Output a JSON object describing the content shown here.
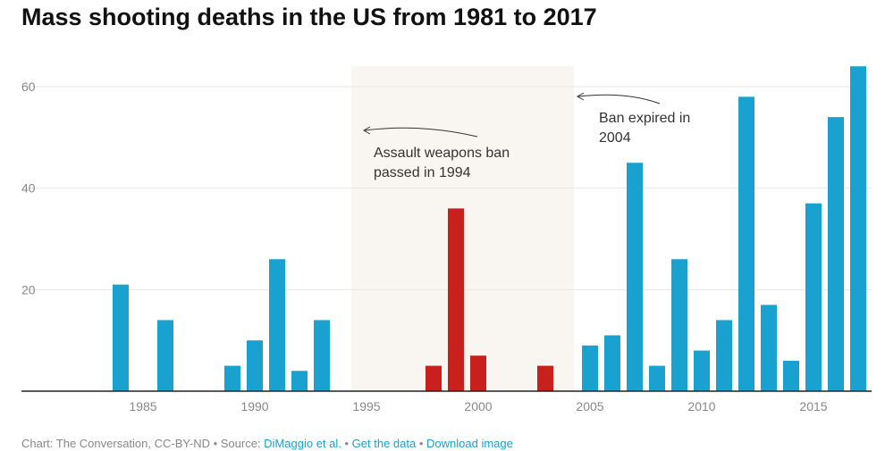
{
  "chart_data": {
    "type": "bar",
    "title": "Mass shooting deaths in the US from 1981 to 2017",
    "xlabel": "",
    "ylabel": "",
    "xlim": [
      1981,
      2017
    ],
    "ylim": [
      0,
      64
    ],
    "yticks": [
      20,
      40,
      60
    ],
    "xticks": [
      1985,
      1990,
      1995,
      2000,
      2005,
      2010,
      2015
    ],
    "grid": true,
    "colors": {
      "normal": "#19a2cf",
      "ban": "#c8201c",
      "band": "#f9f5f0"
    },
    "ban_period": [
      1994,
      2004
    ],
    "data": [
      {
        "year": 1984,
        "value": 21
      },
      {
        "year": 1986,
        "value": 14
      },
      {
        "year": 1989,
        "value": 5
      },
      {
        "year": 1990,
        "value": 10
      },
      {
        "year": 1991,
        "value": 26
      },
      {
        "year": 1992,
        "value": 4
      },
      {
        "year": 1993,
        "value": 14
      },
      {
        "year": 1998,
        "value": 5
      },
      {
        "year": 1999,
        "value": 36
      },
      {
        "year": 2000,
        "value": 7
      },
      {
        "year": 2003,
        "value": 5
      },
      {
        "year": 2005,
        "value": 9
      },
      {
        "year": 2006,
        "value": 11
      },
      {
        "year": 2007,
        "value": 45
      },
      {
        "year": 2008,
        "value": 5
      },
      {
        "year": 2009,
        "value": 26
      },
      {
        "year": 2010,
        "value": 8
      },
      {
        "year": 2011,
        "value": 14
      },
      {
        "year": 2012,
        "value": 58
      },
      {
        "year": 2013,
        "value": 17
      },
      {
        "year": 2014,
        "value": 6
      },
      {
        "year": 2015,
        "value": 37
      },
      {
        "year": 2016,
        "value": 54
      },
      {
        "year": 2017,
        "value": 64
      }
    ],
    "annotations": [
      {
        "lines": [
          "Assault weapons ban",
          "passed in 1994"
        ]
      },
      {
        "lines": [
          "Ban expired in",
          "2004"
        ]
      }
    ]
  },
  "footer": {
    "credit": "Chart: The Conversation, CC-BY-ND • Source: ",
    "source_link": "DiMaggio et al.",
    "sep1": " • ",
    "data_link": "Get the data",
    "sep2": " • ",
    "download_link": "Download image"
  }
}
